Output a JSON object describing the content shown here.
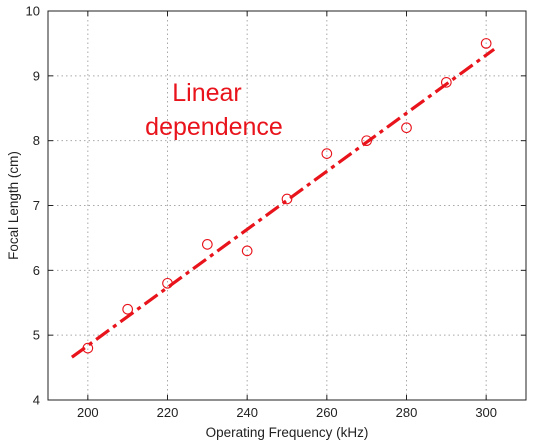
{
  "chart_data": {
    "type": "scatter",
    "xlabel": "Operating Frequency (kHz)",
    "ylabel": "Focal Length (cm)",
    "xlim": [
      190,
      310
    ],
    "ylim": [
      4,
      10
    ],
    "x_ticks": [
      200,
      220,
      240,
      260,
      280,
      300
    ],
    "y_ticks": [
      4,
      5,
      6,
      7,
      8,
      9,
      10
    ],
    "grid": true,
    "colors": {
      "series": "#e8131b",
      "axis": "#222222",
      "grid": "#a8a8a8"
    },
    "series": [
      {
        "marker": "circle-open",
        "x": [
          200,
          210,
          220,
          230,
          240,
          250,
          260,
          270,
          280,
          290,
          300
        ],
        "y": [
          4.8,
          5.4,
          5.8,
          6.4,
          6.3,
          7.1,
          7.8,
          8.0,
          8.2,
          8.9,
          9.5
        ]
      },
      {
        "line_style": "dash-dot",
        "x": [
          196,
          302
        ],
        "y": [
          4.66,
          9.41
        ]
      }
    ],
    "annotations": [
      {
        "text_lines": [
          "Linear",
          "dependence"
        ],
        "color": "#e8131b"
      }
    ]
  }
}
